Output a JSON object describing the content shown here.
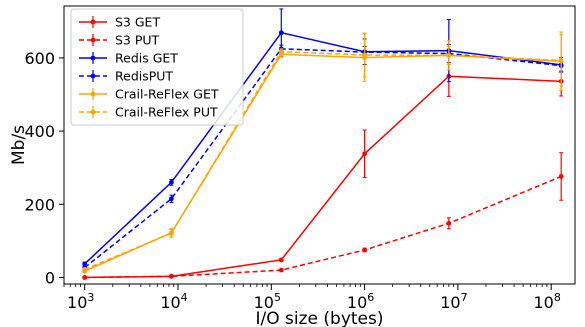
{
  "chart_data": {
    "type": "line",
    "xlabel": "I/O size (bytes)",
    "ylabel": "Mb/s",
    "xscale": "log",
    "xlim": [
      600,
      180000000
    ],
    "ylim": [
      -18,
      742
    ],
    "yticks": [
      0,
      200,
      400,
      600
    ],
    "ytick_labels": [
      "0",
      "200",
      "400",
      "600"
    ],
    "xticks": [
      1000,
      10000,
      100000,
      1000000,
      10000000,
      100000000
    ],
    "xtick_labels": [
      {
        "base": "10",
        "exp": "3"
      },
      {
        "base": "10",
        "exp": "4"
      },
      {
        "base": "10",
        "exp": "5"
      },
      {
        "base": "10",
        "exp": "6"
      },
      {
        "base": "10",
        "exp": "7"
      },
      {
        "base": "10",
        "exp": "8"
      }
    ],
    "legend_position": "top-left",
    "x": [
      1000,
      8500,
      128000,
      1000000,
      8000000,
      128000000
    ],
    "series": [
      {
        "name": "S3 GET",
        "color": "#ff0000",
        "dash": "solid",
        "values": [
          0,
          3,
          48,
          338,
          550,
          536
        ],
        "errors": [
          0,
          2,
          4,
          65,
          55,
          40
        ]
      },
      {
        "name": "S3 PUT",
        "color": "#ff0000",
        "dash": "dashed",
        "values": [
          0,
          3,
          20,
          75,
          148,
          276
        ],
        "errors": [
          0,
          1,
          2,
          5,
          15,
          65
        ]
      },
      {
        "name": "Redis GET",
        "color": "#0000ff",
        "dash": "solid",
        "values": [
          37,
          260,
          669,
          617,
          620,
          581
        ],
        "errors": [
          5,
          8,
          65,
          35,
          85,
          20
        ]
      },
      {
        "name": "RedisPUT",
        "color": "#0000ff",
        "dash": "dashed",
        "values": [
          27,
          215,
          625,
          616,
          612,
          579
        ],
        "errors": [
          4,
          10,
          10,
          15,
          25,
          15
        ]
      },
      {
        "name": "Crail-ReFlex GET",
        "color": "#ffa500",
        "dash": "solid",
        "values": [
          17,
          122,
          610,
          601,
          607,
          591
        ],
        "errors": [
          3,
          12,
          8,
          65,
          40,
          80
        ]
      },
      {
        "name": "Crail-ReFlex PUT",
        "color": "#ffa500",
        "dash": "dashed",
        "values": [
          22,
          121,
          617,
          608,
          607,
          593
        ],
        "errors": [
          3,
          10,
          8,
          60,
          25,
          70
        ]
      }
    ]
  }
}
